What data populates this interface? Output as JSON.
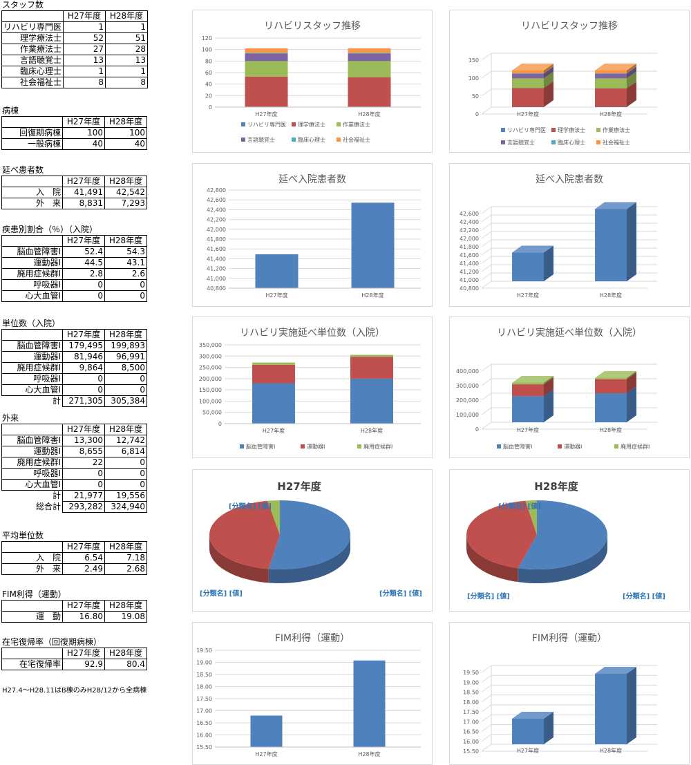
{
  "tables": [
    {
      "title": "スタッフ数",
      "headers": [
        "",
        "H27年度",
        "H28年度"
      ],
      "rows": [
        [
          "リハビリ専門医",
          "1",
          "1"
        ],
        [
          "理学療法士",
          "52",
          "51"
        ],
        [
          "作業療法士",
          "27",
          "28"
        ],
        [
          "言語聴覚士",
          "13",
          "13"
        ],
        [
          "臨床心理士",
          "1",
          "1"
        ],
        [
          "社会福祉士",
          "8",
          "8"
        ]
      ]
    },
    {
      "title": "病棟",
      "headers": [
        "",
        "H27年度",
        "H28年度"
      ],
      "rows": [
        [
          "回復期病棟",
          "100",
          "100"
        ],
        [
          "一般病棟",
          "40",
          "40"
        ]
      ]
    },
    {
      "title": "延べ患者数",
      "headers": [
        "",
        "H27年度",
        "H28年度"
      ],
      "rows": [
        [
          "入　院",
          "41,491",
          "42,542"
        ],
        [
          "外　来",
          "8,831",
          "7,293"
        ]
      ]
    },
    {
      "title": "疾患別割合（％）（入院）",
      "headers": [
        "",
        "H27年度",
        "H28年度"
      ],
      "rows": [
        [
          "脳血管障害Ⅰ",
          "52.4",
          "54.3"
        ],
        [
          "運動器Ⅰ",
          "44.5",
          "43.1"
        ],
        [
          "廃用症候群Ⅰ",
          "2.8",
          "2.6"
        ],
        [
          "呼吸器Ⅰ",
          "0",
          "0"
        ],
        [
          "心大血管Ⅰ",
          "0",
          "0"
        ]
      ]
    },
    {
      "title": "単位数（入院）",
      "headers": [
        "",
        "H27年度",
        "H28年度"
      ],
      "rows": [
        [
          "脳血管障害Ⅰ",
          "179,495",
          "199,893"
        ],
        [
          "運動器Ⅰ",
          "81,946",
          "96,991"
        ],
        [
          "廃用症候群Ⅰ",
          "9,864",
          "8,500"
        ],
        [
          "呼吸器Ⅰ",
          "0",
          "0"
        ],
        [
          "心大血管Ⅰ",
          "0",
          "0"
        ]
      ],
      "total_rows": [
        [
          "計",
          "271,305",
          "305,384"
        ]
      ]
    },
    {
      "title": "外来",
      "headers": [
        "",
        "H27年度",
        "H28年度"
      ],
      "rows": [
        [
          "脳血管障害Ⅰ",
          "13,300",
          "12,742"
        ],
        [
          "運動器Ⅰ",
          "8,655",
          "6,814"
        ],
        [
          "廃用症候群Ⅰ",
          "22",
          "0"
        ],
        [
          "呼吸器Ⅰ",
          "0",
          "0"
        ],
        [
          "心大血管Ⅰ",
          "0",
          "0"
        ]
      ],
      "total_rows": [
        [
          "計",
          "21,977",
          "19,556"
        ],
        [
          "総合計",
          "293,282",
          "324,940"
        ]
      ]
    },
    {
      "title": "平均単位数",
      "headers": [
        "",
        "H27年度",
        "H28年度"
      ],
      "rows": [
        [
          "入　院",
          "6.54",
          "7.18"
        ],
        [
          "外　来",
          "2.49",
          "2.68"
        ]
      ]
    },
    {
      "title": "FIM利得（運動）",
      "headers": [
        "",
        "H27年度",
        "H28年度"
      ],
      "rows": [
        [
          "運　動",
          "16.80",
          "19.08"
        ]
      ]
    },
    {
      "title": "在宅復帰率（回復期病棟）",
      "headers": [
        "",
        "H27年度",
        "H28年度"
      ],
      "rows": [
        [
          "在宅復帰率",
          "92.9",
          "80.4"
        ]
      ]
    }
  ],
  "note": "H27.4〜H28.11はB棟のみH28/12から全病棟",
  "colors": {
    "blue": "#4f81bd",
    "red": "#c0504d",
    "green": "#9bbb59",
    "purple": "#8064a2",
    "teal": "#4bacc6",
    "orange": "#f79646",
    "label_blue": "#2e75b6"
  },
  "chart_data": [
    {
      "type": "bar",
      "stacked": true,
      "style": "2d",
      "title": "リハビリスタッフ推移",
      "categories": [
        "H27年度",
        "H28年度"
      ],
      "ylim": [
        0,
        120
      ],
      "yticks": [
        "0",
        "20",
        "40",
        "60",
        "80",
        "100",
        "120"
      ],
      "legend": "bottom",
      "series": [
        {
          "name": "リハビリ専門医",
          "values": [
            1,
            1
          ]
        },
        {
          "name": "理学療法士",
          "values": [
            52,
            51
          ]
        },
        {
          "name": "作業療法士",
          "values": [
            27,
            28
          ]
        },
        {
          "name": "言語聴覚士",
          "values": [
            13,
            13
          ]
        },
        {
          "name": "臨床心理士",
          "values": [
            1,
            1
          ]
        },
        {
          "name": "社会福祉士",
          "values": [
            8,
            8
          ]
        }
      ]
    },
    {
      "type": "bar",
      "stacked": true,
      "style": "3d",
      "title": "リハビリスタッフ推移",
      "categories": [
        "H27年度",
        "H28年度"
      ],
      "ylim": [
        0,
        150
      ],
      "yticks": [
        "0",
        "50",
        "100",
        "150"
      ],
      "legend": "bottom",
      "series": [
        {
          "name": "リハビリ専門医",
          "values": [
            1,
            1
          ]
        },
        {
          "name": "理学療法士",
          "values": [
            52,
            51
          ]
        },
        {
          "name": "作業療法士",
          "values": [
            27,
            28
          ]
        },
        {
          "name": "言語聴覚士",
          "values": [
            13,
            13
          ]
        },
        {
          "name": "臨床心理士",
          "values": [
            1,
            1
          ]
        },
        {
          "name": "社会福祉士",
          "values": [
            8,
            8
          ]
        }
      ]
    },
    {
      "type": "bar",
      "style": "2d",
      "title": "延べ入院患者数",
      "categories": [
        "H27年度",
        "H28年度"
      ],
      "ylim": [
        40800,
        42800
      ],
      "yticks": [
        "40,800",
        "41,000",
        "41,200",
        "41,400",
        "41,600",
        "41,800",
        "42,000",
        "42,200",
        "42,400",
        "42,600",
        "42,800"
      ],
      "series": [
        {
          "values": [
            41491,
            42542
          ]
        }
      ]
    },
    {
      "type": "bar",
      "style": "3d",
      "title": "延べ入院患者数",
      "categories": [
        "H27年度",
        "H28年度"
      ],
      "ylim": [
        40800,
        42600
      ],
      "yticks": [
        "40,800",
        "41,000",
        "41,200",
        "41,400",
        "41,600",
        "41,800",
        "42,000",
        "42,200",
        "42,400",
        "42,600"
      ],
      "series": [
        {
          "values": [
            41491,
            42542
          ]
        }
      ]
    },
    {
      "type": "bar",
      "stacked": true,
      "style": "2d",
      "title": "リハビリ実施延べ単位数（入院）",
      "categories": [
        "H27年度",
        "H28年度"
      ],
      "ylim": [
        0,
        350000
      ],
      "yticks": [
        "0",
        "50,000",
        "100,000",
        "150,000",
        "200,000",
        "250,000",
        "300,000",
        "350,000"
      ],
      "legend": "bottom",
      "series": [
        {
          "name": "脳血管障害Ⅰ",
          "values": [
            179495,
            199893
          ]
        },
        {
          "name": "運動器Ⅰ",
          "values": [
            81946,
            96991
          ]
        },
        {
          "name": "廃用症候群Ⅰ",
          "values": [
            9864,
            8500
          ]
        }
      ]
    },
    {
      "type": "bar",
      "stacked": true,
      "style": "3d",
      "title": "リハビリ実施延べ単位数（入院）",
      "categories": [
        "H27年度",
        "H28年度"
      ],
      "ylim": [
        0,
        400000
      ],
      "yticks": [
        "0",
        "100,000",
        "200,000",
        "300,000",
        "400,000"
      ],
      "legend": "bottom",
      "series": [
        {
          "name": "脳血管障害Ⅰ",
          "values": [
            179495,
            199893
          ]
        },
        {
          "name": "運動器Ⅰ",
          "values": [
            81946,
            96991
          ]
        },
        {
          "name": "廃用症候群Ⅰ",
          "values": [
            9864,
            8500
          ]
        }
      ]
    },
    {
      "type": "pie",
      "title": "H27年度",
      "values": [
        52.4,
        44.5,
        2.8
      ],
      "labels": [
        "[分類名] [値]",
        "[分類名] [値]",
        "[分類名] [値]"
      ]
    },
    {
      "type": "pie",
      "title": "H28年度",
      "values": [
        54.3,
        43.1,
        2.6
      ],
      "labels": [
        "[分類名] [値]",
        "[分類名] [値]",
        "[分類名] [値]"
      ]
    },
    {
      "type": "bar",
      "style": "2d",
      "title": "FIM利得（運動）",
      "categories": [
        "H27年度",
        "H28年度"
      ],
      "ylim": [
        15.5,
        19.5
      ],
      "yticks": [
        "15.50",
        "16.00",
        "16.50",
        "17.00",
        "17.50",
        "18.00",
        "18.50",
        "19.00",
        "19.50"
      ],
      "series": [
        {
          "values": [
            16.8,
            19.08
          ]
        }
      ]
    },
    {
      "type": "bar",
      "style": "3d",
      "title": "FIM利得（運動）",
      "categories": [
        "H27年度",
        "H28年度"
      ],
      "ylim": [
        15.5,
        19.5
      ],
      "yticks": [
        "15.50",
        "16.00",
        "16.50",
        "17.00",
        "17.50",
        "18.00",
        "18.50",
        "19.00",
        "19.50"
      ],
      "series": [
        {
          "values": [
            16.8,
            19.08
          ]
        }
      ]
    }
  ]
}
